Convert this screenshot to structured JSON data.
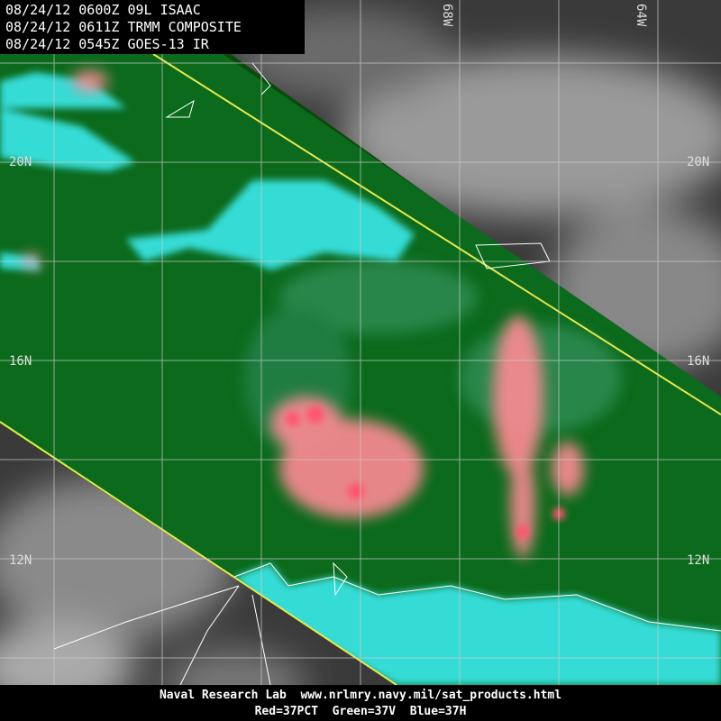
{
  "header": {
    "lines": [
      "08/24/12 0600Z 09L ISAAC",
      "08/24/12 0611Z TRMM COMPOSITE",
      "08/24/12 0545Z GOES-13 IR"
    ]
  },
  "grid": {
    "latitude_labels": [
      "20N",
      "16N",
      "12N"
    ],
    "longitude_labels": [
      "68W",
      "64W"
    ]
  },
  "footer": {
    "lines": [
      "Naval Research Lab  www.nrlmry.navy.mil/sat_products.html",
      "Red=37PCT  Green=37V  Blue=37H"
    ]
  }
}
